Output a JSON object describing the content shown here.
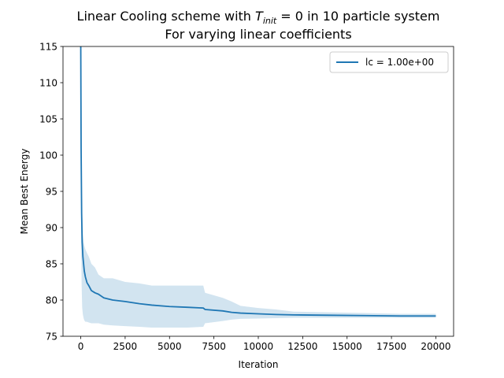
{
  "chart_data": {
    "type": "line",
    "title_line1_prefix": "Linear Cooling scheme with ",
    "title_line1_var": "T",
    "title_line1_sub": "init",
    "title_line1_suffix": " = 0 in 10 particle system",
    "title_line2": "For varying linear coefficients",
    "xlabel": "Iteration",
    "ylabel": "Mean Best Energy",
    "xlim": [
      -1000,
      21000
    ],
    "ylim": [
      75,
      115
    ],
    "x_ticks": [
      0,
      2500,
      5000,
      7500,
      10000,
      12500,
      15000,
      17500,
      20000
    ],
    "x_tick_labels": [
      "0",
      "2500",
      "5000",
      "7500",
      "10000",
      "12500",
      "15000",
      "17500",
      "20000"
    ],
    "y_ticks": [
      75,
      80,
      85,
      90,
      95,
      100,
      105,
      110,
      115
    ],
    "y_tick_labels": [
      "75",
      "80",
      "85",
      "90",
      "95",
      "100",
      "105",
      "110",
      "115"
    ],
    "series": [
      {
        "name": "lc = 1.00e+00",
        "color": "#1f77b4",
        "band_color": "#1f77b4",
        "x": [
          0,
          20,
          50,
          80,
          120,
          160,
          200,
          260,
          350,
          450,
          600,
          800,
          1000,
          1300,
          1800,
          2500,
          3300,
          4000,
          5000,
          6000,
          6900,
          7000,
          8000,
          8500,
          9000,
          10000,
          11000,
          12000,
          14000,
          16000,
          18000,
          20000
        ],
        "y": [
          118,
          101,
          92,
          88,
          86,
          85,
          84,
          83.2,
          82.4,
          82,
          81.3,
          81,
          80.8,
          80.3,
          80,
          79.8,
          79.5,
          79.3,
          79.1,
          79,
          78.9,
          78.7,
          78.5,
          78.3,
          78.2,
          78.1,
          78,
          77.95,
          77.9,
          77.85,
          77.8,
          77.8
        ],
        "lower": [
          101,
          89,
          82,
          79,
          78,
          77.5,
          77.2,
          77,
          77,
          76.9,
          76.8,
          76.8,
          76.8,
          76.6,
          76.5,
          76.4,
          76.3,
          76.2,
          76.2,
          76.2,
          76.3,
          76.8,
          77.1,
          77.3,
          77.4,
          77.45,
          77.5,
          77.55,
          77.55,
          77.55,
          77.55,
          77.55
        ],
        "upper": [
          118,
          112,
          98,
          92,
          89,
          88,
          87.5,
          87,
          86.5,
          86,
          85,
          84.5,
          83.5,
          83,
          83,
          82.5,
          82.3,
          82,
          82,
          82,
          82,
          81,
          80.3,
          79.8,
          79.2,
          78.9,
          78.7,
          78.4,
          78.3,
          78.2,
          78.1,
          78.1
        ]
      }
    ],
    "legend_position": "top-right",
    "grid": false
  }
}
